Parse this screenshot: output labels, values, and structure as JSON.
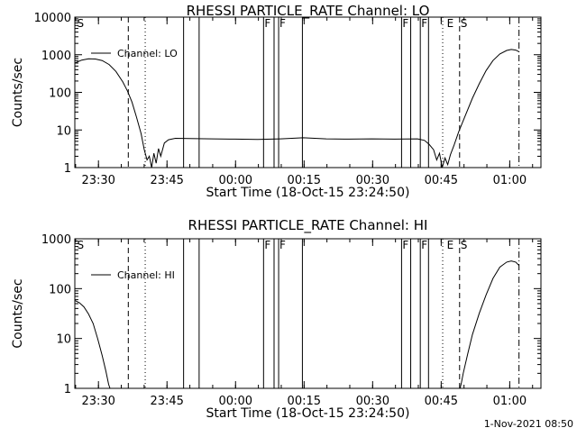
{
  "footer_stamp": "1-Nov-2021 08:50",
  "chart_data": [
    {
      "type": "line",
      "title": "RHESSI PARTICLE_RATE Channel: LO",
      "xlabel": "Start Time (18-Oct-15 23:24:50)",
      "ylabel": "Counts/sec",
      "y_scale": "log",
      "ylim": [
        1,
        10000
      ],
      "xlim_minutes": [
        0,
        102
      ],
      "x_tick_labels": [
        "23:30",
        "23:45",
        "00:00",
        "00:15",
        "00:30",
        "00:45",
        "01:00"
      ],
      "x_tick_minutes": [
        5.17,
        20.17,
        35.17,
        50.17,
        65.17,
        80.17,
        95.17
      ],
      "y_tick_labels": [
        "1",
        "10",
        "100",
        "1000",
        "10000"
      ],
      "y_tick_values": [
        1,
        10,
        100,
        1000,
        10000
      ],
      "legend": {
        "position": "top-left",
        "label": "Channel: LO"
      },
      "series": [
        {
          "name": "Channel: LO",
          "points": [
            [
              0,
              600
            ],
            [
              1.5,
              720
            ],
            [
              3,
              780
            ],
            [
              4.5,
              770
            ],
            [
              6,
              700
            ],
            [
              7.5,
              550
            ],
            [
              9,
              360
            ],
            [
              10.5,
              190
            ],
            [
              11.5,
              110
            ],
            [
              12.5,
              55
            ],
            [
              13.5,
              22
            ],
            [
              14.5,
              8
            ],
            [
              15.2,
              3
            ],
            [
              15.8,
              1.6
            ],
            [
              16.3,
              2
            ],
            [
              16.8,
              1
            ],
            [
              17.3,
              2.4
            ],
            [
              17.8,
              1.3
            ],
            [
              18.3,
              3.2
            ],
            [
              18.8,
              2
            ],
            [
              19.6,
              4.5
            ],
            [
              20.5,
              5.5
            ],
            [
              22,
              6
            ],
            [
              25,
              5.9
            ],
            [
              30,
              5.8
            ],
            [
              35,
              5.7
            ],
            [
              40,
              5.6
            ],
            [
              45,
              5.8
            ],
            [
              50,
              6.2
            ],
            [
              55,
              5.8
            ],
            [
              60,
              5.7
            ],
            [
              65,
              5.8
            ],
            [
              70,
              5.7
            ],
            [
              75,
              5.8
            ],
            [
              76.5,
              5.3
            ],
            [
              77.5,
              4.2
            ],
            [
              78.5,
              3
            ],
            [
              79.2,
              1.6
            ],
            [
              79.8,
              2.4
            ],
            [
              80.4,
              1
            ],
            [
              81,
              1.8
            ],
            [
              81.6,
              1.2
            ],
            [
              82.2,
              2.2
            ],
            [
              83,
              4
            ],
            [
              84,
              9
            ],
            [
              85.5,
              25
            ],
            [
              87,
              70
            ],
            [
              88.5,
              170
            ],
            [
              90,
              380
            ],
            [
              91.5,
              700
            ],
            [
              93,
              1050
            ],
            [
              94.5,
              1300
            ],
            [
              95.5,
              1380
            ],
            [
              96.5,
              1330
            ],
            [
              97.2,
              1200
            ]
          ]
        }
      ],
      "flags": [
        {
          "label": "S",
          "minute": 0.3
        },
        {
          "label": "F",
          "minute": 41.3
        },
        {
          "label": "F",
          "minute": 44.6
        },
        {
          "label": "F",
          "minute": 71.5
        },
        {
          "label": "F",
          "minute": 75.6
        },
        {
          "label": "E",
          "minute": 81.2
        },
        {
          "label": "S",
          "minute": 84.2
        }
      ],
      "solid_vlines": [
        23.8,
        27.2,
        41.3,
        43.6,
        44.6,
        49.8,
        71.5,
        73.5,
        75.6,
        77.4
      ],
      "dashed_vlines": [
        11.7,
        84.2
      ],
      "dotted_vlines": [
        15.4,
        80.5
      ],
      "dashdot_vlines": [
        97.2
      ]
    },
    {
      "type": "line",
      "title": "RHESSI PARTICLE_RATE Channel: HI",
      "xlabel": "Start Time (18-Oct-15 23:24:50)",
      "ylabel": "Counts/sec",
      "y_scale": "log",
      "ylim": [
        1,
        1000
      ],
      "xlim_minutes": [
        0,
        102
      ],
      "x_tick_labels": [
        "23:30",
        "23:45",
        "00:00",
        "00:15",
        "00:30",
        "00:45",
        "01:00"
      ],
      "x_tick_minutes": [
        5.17,
        20.17,
        35.17,
        50.17,
        65.17,
        80.17,
        95.17
      ],
      "y_tick_labels": [
        "1",
        "10",
        "100",
        "1000"
      ],
      "y_tick_values": [
        1,
        10,
        100,
        1000
      ],
      "legend": {
        "position": "top-left",
        "label": "Channel: HI"
      },
      "series": [
        {
          "name": "Channel: HI",
          "points": [
            [
              0,
              58
            ],
            [
              1,
              52
            ],
            [
              2,
              43
            ],
            [
              3,
              31
            ],
            [
              4,
              20
            ],
            [
              5,
              10
            ],
            [
              6,
              4.5
            ],
            [
              6.8,
              2.2
            ],
            [
              7.4,
              1.2
            ],
            [
              7.7,
              1
            ],
            [
              84.3,
              1
            ],
            [
              84.6,
              1.3
            ],
            [
              85,
              2
            ],
            [
              86,
              5
            ],
            [
              87,
              12
            ],
            [
              88.5,
              32
            ],
            [
              90,
              75
            ],
            [
              91.5,
              160
            ],
            [
              93,
              270
            ],
            [
              94.5,
              340
            ],
            [
              95.5,
              360
            ],
            [
              96.5,
              340
            ],
            [
              97.2,
              290
            ]
          ]
        }
      ],
      "flags": [
        {
          "label": "S",
          "minute": 0.3
        },
        {
          "label": "F",
          "minute": 41.3
        },
        {
          "label": "F",
          "minute": 44.6
        },
        {
          "label": "F",
          "minute": 71.5
        },
        {
          "label": "F",
          "minute": 75.6
        },
        {
          "label": "E",
          "minute": 81.2
        },
        {
          "label": "S",
          "minute": 84.2
        }
      ],
      "solid_vlines": [
        23.8,
        27.2,
        41.3,
        43.6,
        44.6,
        49.8,
        71.5,
        73.5,
        75.6,
        77.4
      ],
      "dashed_vlines": [
        11.7,
        84.2
      ],
      "dotted_vlines": [
        15.4,
        80.5
      ],
      "dashdot_vlines": [
        97.2
      ]
    }
  ]
}
